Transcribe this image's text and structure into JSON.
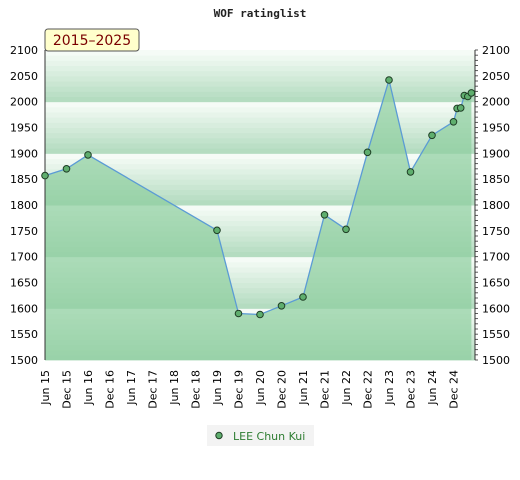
{
  "chart_data": {
    "type": "area",
    "title": "WOF ratinglist",
    "range_label": "2015–2025",
    "ylim": [
      1500,
      2100
    ],
    "y_ticks": [
      1500,
      1550,
      1600,
      1650,
      1700,
      1750,
      1800,
      1850,
      1900,
      1950,
      2000,
      2050,
      2100
    ],
    "x_tick_labels": [
      "Jun 15",
      "Dec 15",
      "Jun 16",
      "Dec 16",
      "Jun 17",
      "Dec 17",
      "Jun 18",
      "Dec 18",
      "Jun 19",
      "Dec 19",
      "Jun 20",
      "Dec 20",
      "Jun 21",
      "Dec 21",
      "Jun 22",
      "Dec 22",
      "Jun 23",
      "Dec 23",
      "Jun 24",
      "Dec 24"
    ],
    "legend_position": "bottom-center",
    "right_axis": true,
    "colors": {
      "line": "#5b9bd5",
      "fill": "#8fcf9f",
      "marker_fill": "#5fae6e",
      "marker_stroke": "#1e3d24",
      "band_dark": "#b4dcc0",
      "band_light": "#f5fbf6"
    },
    "series": [
      {
        "name": "LEE Chun Kui",
        "points": [
          {
            "x": "2015-06",
            "y": 1857
          },
          {
            "x": "2015-12",
            "y": 1870
          },
          {
            "x": "2016-06",
            "y": 1897
          },
          {
            "x": "2019-06",
            "y": 1751
          },
          {
            "x": "2019-12",
            "y": 1590
          },
          {
            "x": "2020-06",
            "y": 1588
          },
          {
            "x": "2020-12",
            "y": 1605
          },
          {
            "x": "2021-06",
            "y": 1622
          },
          {
            "x": "2021-12",
            "y": 1781
          },
          {
            "x": "2022-06",
            "y": 1753
          },
          {
            "x": "2022-12",
            "y": 1902
          },
          {
            "x": "2023-06",
            "y": 2042
          },
          {
            "x": "2023-12",
            "y": 1864
          },
          {
            "x": "2024-06",
            "y": 1935
          },
          {
            "x": "2024-12",
            "y": 1961
          },
          {
            "x": "2025-01",
            "y": 1987
          },
          {
            "x": "2025-02",
            "y": 1988
          },
          {
            "x": "2025-03",
            "y": 2012
          },
          {
            "x": "2025-04",
            "y": 2010
          },
          {
            "x": "2025-05",
            "y": 2017
          }
        ]
      }
    ]
  }
}
